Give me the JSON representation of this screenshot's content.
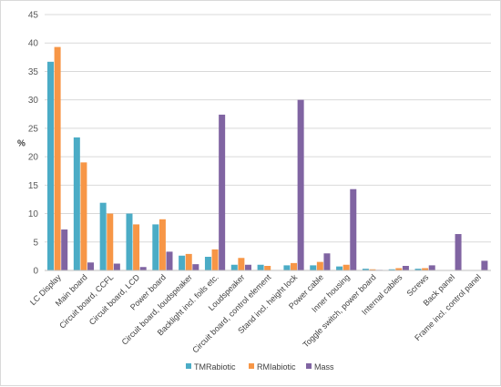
{
  "chart_data": {
    "type": "bar",
    "ylabel": "%",
    "ylim": [
      0,
      45
    ],
    "yticks": [
      0,
      5,
      10,
      15,
      20,
      25,
      30,
      35,
      40,
      45
    ],
    "grid": true,
    "legend_position": "bottom",
    "categories": [
      "LC Display",
      "Main board",
      "Circuit board, CCFL",
      "Circuit board, LCD",
      "Power board",
      "Circuit board, loudspeaker",
      "Backlight incl. foils etc.",
      "Loudspeaker",
      "Circuit board, control element",
      "Stand incl. height lock",
      "Power cable",
      "Inner housing",
      "Toggle switch, power board",
      "Internal cables",
      "Screws",
      "Back panel",
      "Frame incl. control panel"
    ],
    "series": [
      {
        "name": "TMRabiotic",
        "color": "#4bacc6",
        "values": [
          36.7,
          23.4,
          11.9,
          10.0,
          8.1,
          2.6,
          2.4,
          1.0,
          1.0,
          0.9,
          0.9,
          0.7,
          0.3,
          0.2,
          0.3,
          0.0,
          0.0
        ]
      },
      {
        "name": "RMIabiotic",
        "color": "#f79646",
        "values": [
          39.3,
          19.0,
          10.0,
          8.1,
          9.0,
          2.9,
          3.7,
          2.2,
          0.8,
          1.3,
          1.5,
          1.0,
          0.2,
          0.4,
          0.4,
          0.0,
          0.0
        ]
      },
      {
        "name": "Mass",
        "color": "#8064a2",
        "values": [
          7.2,
          1.4,
          1.2,
          0.6,
          3.3,
          1.1,
          27.4,
          1.0,
          0.0,
          30.0,
          3.0,
          14.3,
          0.1,
          0.8,
          0.9,
          6.4,
          1.7
        ]
      }
    ]
  }
}
